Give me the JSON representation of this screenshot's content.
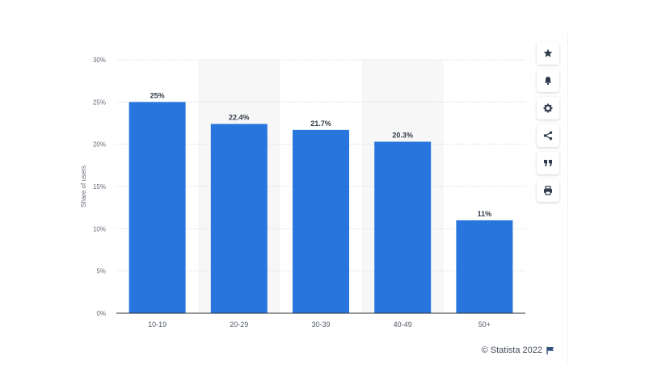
{
  "chart_data": {
    "type": "bar",
    "categories": [
      "10-19",
      "20-29",
      "30-39",
      "40-49",
      "50+"
    ],
    "values": [
      25,
      22.4,
      21.7,
      20.3,
      11
    ],
    "value_labels": [
      "25%",
      "22.4%",
      "21.7%",
      "20.3%",
      "11%"
    ],
    "title": "",
    "xlabel": "",
    "ylabel": "Share of users",
    "ylim": [
      0,
      30
    ],
    "yticks": [
      0,
      5,
      10,
      15,
      20,
      25,
      30
    ],
    "ytick_labels": [
      "0%",
      "5%",
      "10%",
      "15%",
      "20%",
      "25%",
      "30%"
    ],
    "grid": true,
    "bar_color": "#2876dd",
    "alt_band_color": "#f7f7f8"
  },
  "toolbar": {
    "buttons": [
      {
        "icon": "star-icon",
        "label": "Favorite"
      },
      {
        "icon": "bell-icon",
        "label": "Notification"
      },
      {
        "icon": "gear-icon",
        "label": "Settings"
      },
      {
        "icon": "share-icon",
        "label": "Share"
      },
      {
        "icon": "quote-icon",
        "label": "Cite"
      },
      {
        "icon": "print-icon",
        "label": "Print"
      }
    ]
  },
  "credit": {
    "text": "© Statista 2022",
    "icon": "flag-icon"
  }
}
